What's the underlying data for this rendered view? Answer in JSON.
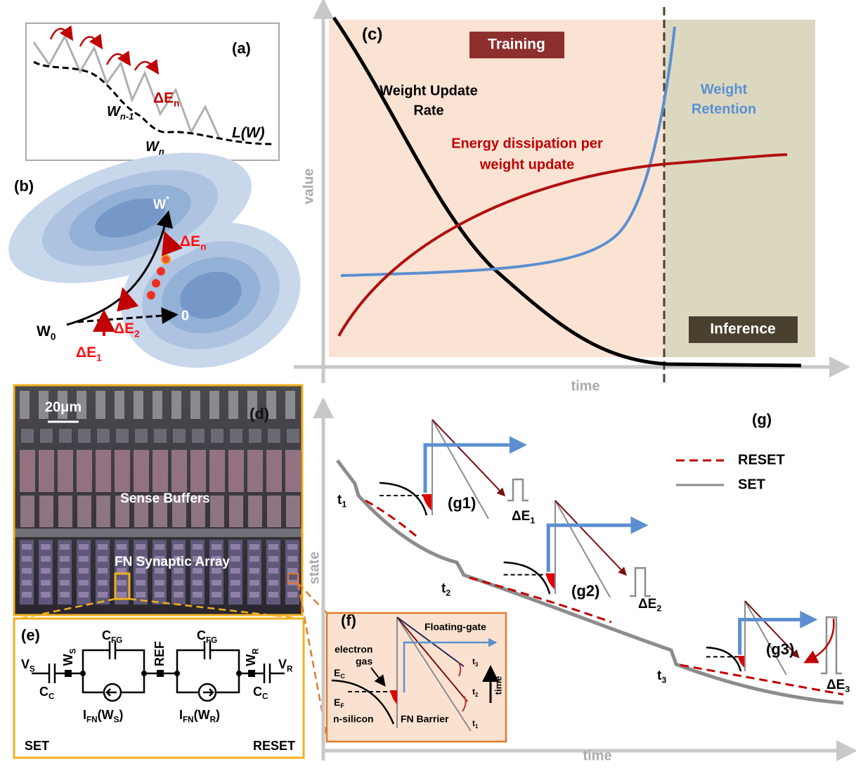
{
  "a": {
    "label": "(a)",
    "delta_e": [
      "ΔE",
      "n"
    ],
    "w_prev": [
      "W",
      "n-1"
    ],
    "w_n": [
      "W",
      "n"
    ],
    "loss": "L(W)"
  },
  "b": {
    "label": "(b)",
    "w_star": [
      "W",
      "*"
    ],
    "delta_en": [
      "ΔE",
      "n"
    ],
    "delta_e2": [
      "ΔE",
      "2"
    ],
    "delta_e1": [
      "ΔE",
      "1"
    ],
    "w0": [
      "W",
      "0"
    ],
    "zero": "0"
  },
  "c": {
    "label": "(c)",
    "training": "Training",
    "inference": "Inference",
    "weight_update_rate": [
      "Weight Update",
      "Rate"
    ],
    "weight_retention": [
      "Weight",
      "Retention"
    ],
    "energy": [
      "Energy dissipation per",
      "weight update"
    ],
    "y_label": "value",
    "x_label": "time"
  },
  "d": {
    "label": "(d)",
    "scale": "20μm",
    "sense_buffers": "Sense Buffers",
    "array": "FN Synaptic Array"
  },
  "e": {
    "label": "(e)",
    "vs": [
      "V",
      "S"
    ],
    "cc_left": [
      "C",
      "C"
    ],
    "ws": [
      "W",
      "S"
    ],
    "cfg_left": [
      "C",
      "FG"
    ],
    "ref": "REF",
    "cfg_right": [
      "C",
      "FG"
    ],
    "wr": [
      "W",
      "R"
    ],
    "vr": [
      "V",
      "R"
    ],
    "cc_right": [
      "C",
      "C"
    ],
    "ifn_s": [
      "I",
      "FN",
      "(W",
      "S",
      ")"
    ],
    "ifn_r": [
      "I",
      "FN",
      "(W",
      "R",
      ")"
    ],
    "set": "SET",
    "reset": "RESET"
  },
  "f": {
    "label": "(f)",
    "floating_gate": "Floating-gate",
    "electron_gas": [
      "electron",
      "gas"
    ],
    "ec": [
      "E",
      "C"
    ],
    "ef": [
      "E",
      "F"
    ],
    "n_silicon": "n-silicon",
    "fn_barrier": "FN Barrier",
    "t1": [
      "t",
      "1"
    ],
    "t2": [
      "t",
      "2"
    ],
    "t3": [
      "t",
      "3"
    ],
    "time": "time"
  },
  "g": {
    "label": "(g)",
    "legend": {
      "reset": "RESET",
      "set": "SET"
    },
    "t1": [
      "t",
      "1"
    ],
    "t2": [
      "t",
      "2"
    ],
    "t3": [
      "t",
      "3"
    ],
    "g1": "(g1)",
    "g2": "(g2)",
    "g3": "(g3)",
    "de1": [
      "ΔE",
      "1"
    ],
    "de2": [
      "ΔE",
      "2"
    ],
    "de3": [
      "ΔE",
      "3"
    ],
    "y_label": "state",
    "x_label": "time"
  }
}
